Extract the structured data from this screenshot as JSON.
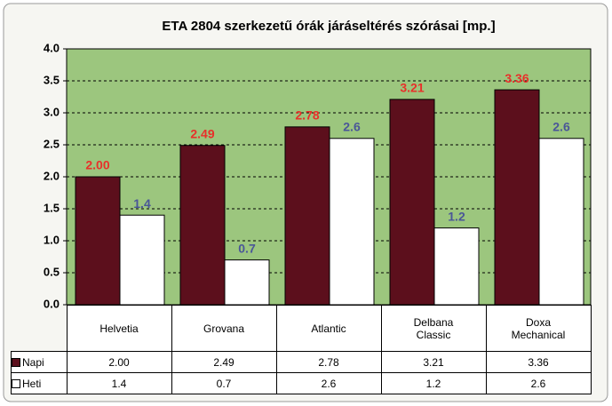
{
  "chart_data": {
    "type": "bar",
    "title": "ETA 2804 szerkezetű órák járáseltérés szórásai [mp.]",
    "categories": [
      "Helvetia",
      "Grovana",
      "Atlantic",
      "Delbana Classic",
      "Doxa Mechanical"
    ],
    "series": [
      {
        "name": "Napi",
        "color": "#5c0f1c",
        "label_color": "#e8302a",
        "values": [
          2.0,
          2.49,
          2.78,
          3.21,
          3.36
        ],
        "value_labels": [
          "2.00",
          "2.49",
          "2.78",
          "3.21",
          "3.36"
        ]
      },
      {
        "name": "Heti",
        "color": "#ffffff",
        "label_color": "#4a5698",
        "values": [
          1.4,
          0.7,
          2.6,
          1.2,
          2.6
        ]
      }
    ],
    "ylim": [
      0,
      4
    ],
    "yticks": [
      {
        "value": 0,
        "label": "0.0"
      },
      {
        "value": 0.5,
        "label": "0.5"
      },
      {
        "value": 1,
        "label": "1.0"
      },
      {
        "value": 1.5,
        "label": "1.5"
      },
      {
        "value": 2,
        "label": "2.0"
      },
      {
        "value": 2.5,
        "label": "2.5"
      },
      {
        "value": 3,
        "label": "3.0"
      },
      {
        "value": 3.5,
        "label": "3.5"
      },
      {
        "value": 4,
        "label": "4.0"
      }
    ],
    "grid": true,
    "plot_background": "#9cc67e"
  }
}
